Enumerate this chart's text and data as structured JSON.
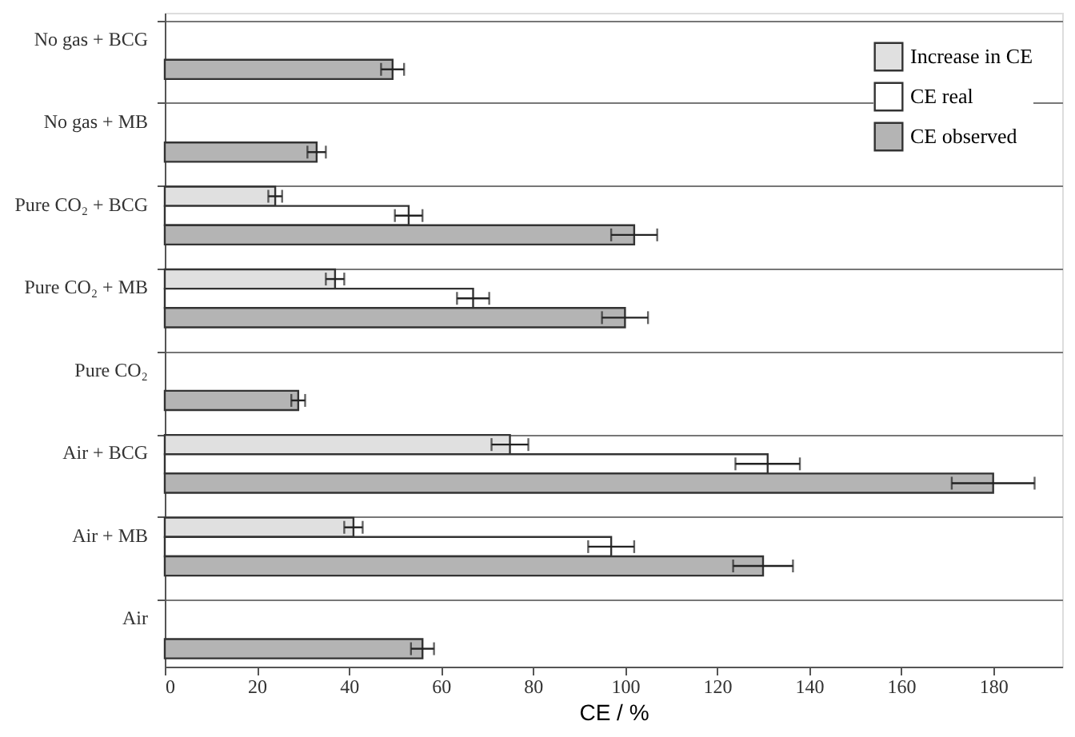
{
  "chart_data": {
    "type": "bar",
    "orientation": "horizontal",
    "xlabel": "CE /  %",
    "categories": [
      "No gas + BCG",
      "No gas + MB",
      "Pure CO₂ + BCG",
      "Pure CO₂ + MB",
      "Pure CO₂",
      "Air + BCG",
      "Air + MB",
      "Air"
    ],
    "series": [
      {
        "name": "Increase in CE",
        "color": "#e0e0e0",
        "values": [
          null,
          null,
          24,
          37,
          null,
          75,
          41,
          null
        ],
        "errors": [
          null,
          null,
          1.5,
          2,
          null,
          4,
          2,
          null
        ]
      },
      {
        "name": "CE real",
        "color": "#ffffff",
        "values": [
          null,
          null,
          53,
          67,
          null,
          131,
          97,
          null
        ],
        "errors": [
          null,
          null,
          3,
          3.5,
          null,
          7,
          5,
          null
        ]
      },
      {
        "name": "CE observed",
        "color": "#b4b4b4",
        "values": [
          49.5,
          33,
          102,
          100,
          29,
          180,
          130,
          56
        ],
        "errors": [
          2.5,
          2,
          5,
          5,
          1.5,
          9,
          6.5,
          2.5
        ]
      }
    ],
    "xlim": [
      0,
      195
    ],
    "xticks": [
      0,
      20,
      40,
      60,
      80,
      100,
      120,
      140,
      160,
      180
    ],
    "grid": "y",
    "legend": "top right"
  }
}
